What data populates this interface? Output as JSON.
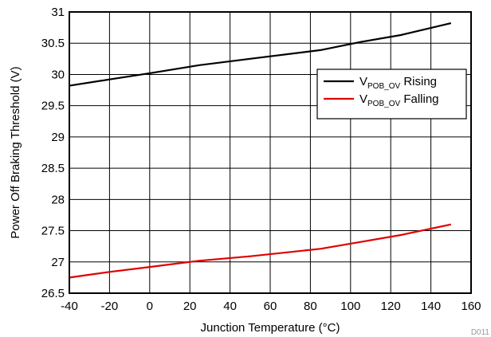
{
  "chart_data": {
    "type": "line",
    "title": "",
    "xlabel": "Junction Temperature (°C)",
    "ylabel": "Power Off Braking Threshold (V)",
    "xlim": [
      -40,
      160
    ],
    "ylim": [
      26.5,
      31
    ],
    "xticks": [
      "-40",
      "-20",
      "0",
      "20",
      "40",
      "60",
      "80",
      "100",
      "120",
      "140",
      "160"
    ],
    "yticks": [
      "26.5",
      "27",
      "27.5",
      "28",
      "28.5",
      "29",
      "29.5",
      "30",
      "30.5",
      "31"
    ],
    "grid": true,
    "legend_position": "right",
    "figure_code": "D011",
    "series": [
      {
        "name_main": "V",
        "name_sub": "POB_OV",
        "name_suffix": " Rising",
        "color": "#000000",
        "x": [
          -40,
          -20,
          0,
          25,
          50,
          85,
          105,
          125,
          150
        ],
        "y": [
          29.82,
          29.92,
          30.02,
          30.15,
          30.25,
          30.39,
          30.52,
          30.63,
          30.82
        ]
      },
      {
        "name_main": "V",
        "name_sub": "POB_OV",
        "name_suffix": " Falling",
        "color": "#e00000",
        "x": [
          -40,
          -20,
          0,
          25,
          50,
          85,
          105,
          125,
          150
        ],
        "y": [
          26.75,
          26.84,
          26.92,
          27.02,
          27.09,
          27.21,
          27.32,
          27.43,
          27.6
        ]
      }
    ]
  }
}
